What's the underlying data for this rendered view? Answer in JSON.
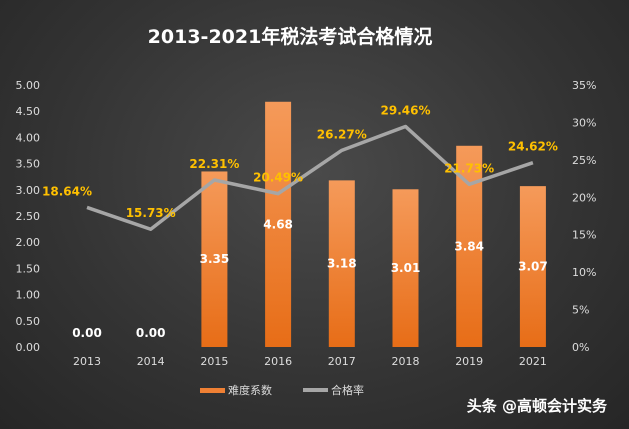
{
  "chart_data": {
    "type": "bar+line",
    "title": "2013-2021年税法考试合格情况",
    "categories": [
      "2013",
      "2014",
      "2015",
      "2016",
      "2017",
      "2018",
      "2019",
      "2021"
    ],
    "series": [
      {
        "name": "难度系数",
        "type": "bar",
        "axis": "left",
        "values": [
          0.0,
          0.0,
          3.35,
          4.68,
          3.18,
          3.01,
          3.84,
          3.07
        ],
        "labels": [
          "0.00",
          "0.00",
          "3.35",
          "4.68",
          "3.18",
          "3.01",
          "3.84",
          "3.07"
        ],
        "color": "#ef8034"
      },
      {
        "name": "合格率",
        "type": "line",
        "axis": "right",
        "values": [
          18.64,
          15.73,
          22.31,
          20.49,
          26.27,
          29.46,
          21.73,
          24.62
        ],
        "labels": [
          "18.64%",
          "15.73%",
          "22.31%",
          "20.49%",
          "26.27%",
          "29.46%",
          "21.73%",
          "24.62%"
        ],
        "color": "#a6a6a6",
        "label_color": "#ffc000"
      }
    ],
    "y_left": {
      "range": [
        0,
        5
      ],
      "ticks": [
        "0.00",
        "0.50",
        "1.00",
        "1.50",
        "2.00",
        "2.50",
        "3.00",
        "3.50",
        "4.00",
        "4.50",
        "5.00"
      ]
    },
    "y_right": {
      "range": [
        0,
        35
      ],
      "ticks": [
        "0%",
        "5%",
        "10%",
        "15%",
        "20%",
        "25%",
        "30%",
        "35%"
      ]
    },
    "grid": false,
    "legend_position": "bottom"
  },
  "watermark": "头条 @高顿会计实务"
}
